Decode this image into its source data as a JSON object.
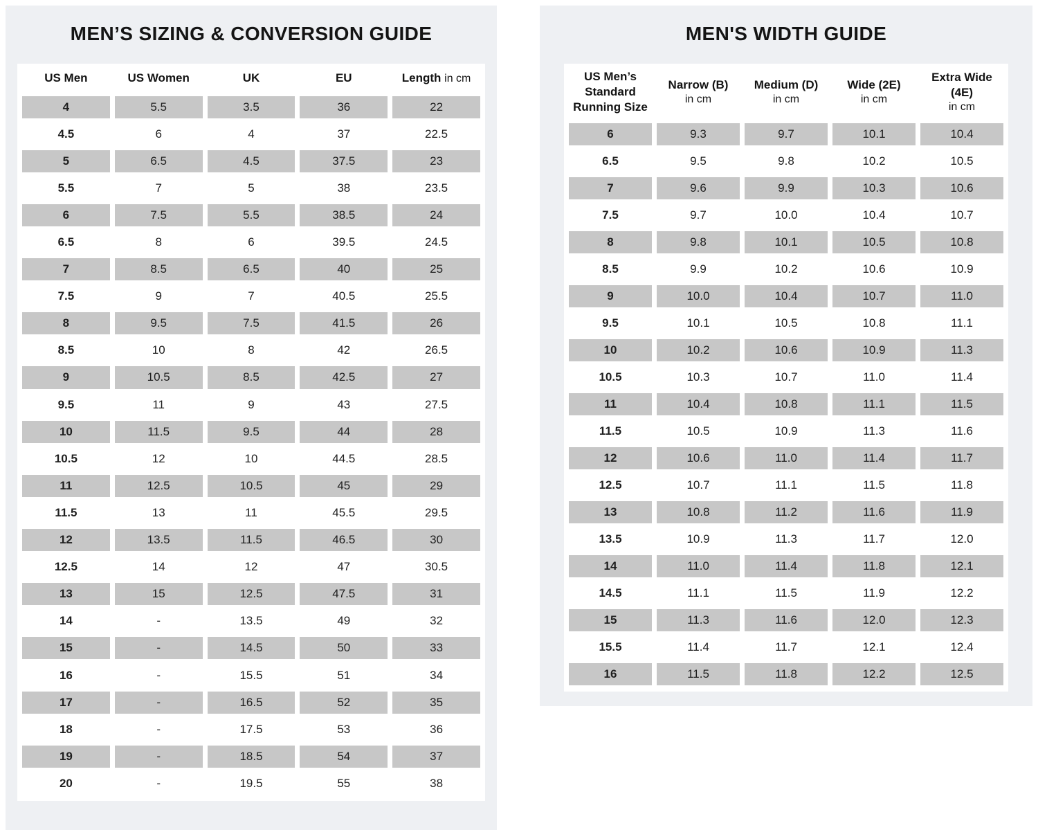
{
  "colors": {
    "canvas_bg": "#ffffff",
    "panel_bg": "#eef0f3",
    "sheet_bg": "#ffffff",
    "shaded_cell": "#c7c7c7",
    "text": "#1a1a1a"
  },
  "chart_data": [
    {
      "type": "table",
      "title": "MEN’S SIZING & CONVERSION GUIDE",
      "headers": [
        {
          "b": "US Men"
        },
        {
          "b": "US Women"
        },
        {
          "b": "UK"
        },
        {
          "b": "EU"
        },
        {
          "b": "Length",
          "r": "in cm"
        }
      ],
      "rows": [
        [
          "4",
          "5.5",
          "3.5",
          "36",
          "22"
        ],
        [
          "4.5",
          "6",
          "4",
          "37",
          "22.5"
        ],
        [
          "5",
          "6.5",
          "4.5",
          "37.5",
          "23"
        ],
        [
          "5.5",
          "7",
          "5",
          "38",
          "23.5"
        ],
        [
          "6",
          "7.5",
          "5.5",
          "38.5",
          "24"
        ],
        [
          "6.5",
          "8",
          "6",
          "39.5",
          "24.5"
        ],
        [
          "7",
          "8.5",
          "6.5",
          "40",
          "25"
        ],
        [
          "7.5",
          "9",
          "7",
          "40.5",
          "25.5"
        ],
        [
          "8",
          "9.5",
          "7.5",
          "41.5",
          "26"
        ],
        [
          "8.5",
          "10",
          "8",
          "42",
          "26.5"
        ],
        [
          "9",
          "10.5",
          "8.5",
          "42.5",
          "27"
        ],
        [
          "9.5",
          "11",
          "9",
          "43",
          "27.5"
        ],
        [
          "10",
          "11.5",
          "9.5",
          "44",
          "28"
        ],
        [
          "10.5",
          "12",
          "10",
          "44.5",
          "28.5"
        ],
        [
          "11",
          "12.5",
          "10.5",
          "45",
          "29"
        ],
        [
          "11.5",
          "13",
          "11",
          "45.5",
          "29.5"
        ],
        [
          "12",
          "13.5",
          "11.5",
          "46.5",
          "30"
        ],
        [
          "12.5",
          "14",
          "12",
          "47",
          "30.5"
        ],
        [
          "13",
          "15",
          "12.5",
          "47.5",
          "31"
        ],
        [
          "14",
          "-",
          "13.5",
          "49",
          "32"
        ],
        [
          "15",
          "-",
          "14.5",
          "50",
          "33"
        ],
        [
          "16",
          "-",
          "15.5",
          "51",
          "34"
        ],
        [
          "17",
          "-",
          "16.5",
          "52",
          "35"
        ],
        [
          "18",
          "-",
          "17.5",
          "53",
          "36"
        ],
        [
          "19",
          "-",
          "18.5",
          "54",
          "37"
        ],
        [
          "20",
          "-",
          "19.5",
          "55",
          "38"
        ]
      ],
      "shading": "alternate rows shaded, starting with first row",
      "legend_position": "none"
    },
    {
      "type": "table",
      "title": "MEN'S WIDTH GUIDE",
      "headers": [
        {
          "lines": [
            "US Men’s",
            "Standard",
            "Running Size"
          ]
        },
        {
          "b": "Narrow (B)",
          "r": "in cm"
        },
        {
          "b": "Medium (D)",
          "r": "in cm"
        },
        {
          "b": "Wide (2E)",
          "r": "in cm"
        },
        {
          "b": "Extra Wide (4E)",
          "r": "in cm"
        }
      ],
      "rows": [
        [
          "6",
          "9.3",
          "9.7",
          "10.1",
          "10.4"
        ],
        [
          "6.5",
          "9.5",
          "9.8",
          "10.2",
          "10.5"
        ],
        [
          "7",
          "9.6",
          "9.9",
          "10.3",
          "10.6"
        ],
        [
          "7.5",
          "9.7",
          "10.0",
          "10.4",
          "10.7"
        ],
        [
          "8",
          "9.8",
          "10.1",
          "10.5",
          "10.8"
        ],
        [
          "8.5",
          "9.9",
          "10.2",
          "10.6",
          "10.9"
        ],
        [
          "9",
          "10.0",
          "10.4",
          "10.7",
          "11.0"
        ],
        [
          "9.5",
          "10.1",
          "10.5",
          "10.8",
          "11.1"
        ],
        [
          "10",
          "10.2",
          "10.6",
          "10.9",
          "11.3"
        ],
        [
          "10.5",
          "10.3",
          "10.7",
          "11.0",
          "11.4"
        ],
        [
          "11",
          "10.4",
          "10.8",
          "11.1",
          "11.5"
        ],
        [
          "11.5",
          "10.5",
          "10.9",
          "11.3",
          "11.6"
        ],
        [
          "12",
          "10.6",
          "11.0",
          "11.4",
          "11.7"
        ],
        [
          "12.5",
          "10.7",
          "11.1",
          "11.5",
          "11.8"
        ],
        [
          "13",
          "10.8",
          "11.2",
          "11.6",
          "11.9"
        ],
        [
          "13.5",
          "10.9",
          "11.3",
          "11.7",
          "12.0"
        ],
        [
          "14",
          "11.0",
          "11.4",
          "11.8",
          "12.1"
        ],
        [
          "14.5",
          "11.1",
          "11.5",
          "11.9",
          "12.2"
        ],
        [
          "15",
          "11.3",
          "11.6",
          "12.0",
          "12.3"
        ],
        [
          "15.5",
          "11.4",
          "11.7",
          "12.1",
          "12.4"
        ],
        [
          "16",
          "11.5",
          "11.8",
          "12.2",
          "12.5"
        ]
      ],
      "shading": "alternate rows shaded, starting with first row",
      "legend_position": "none"
    }
  ]
}
